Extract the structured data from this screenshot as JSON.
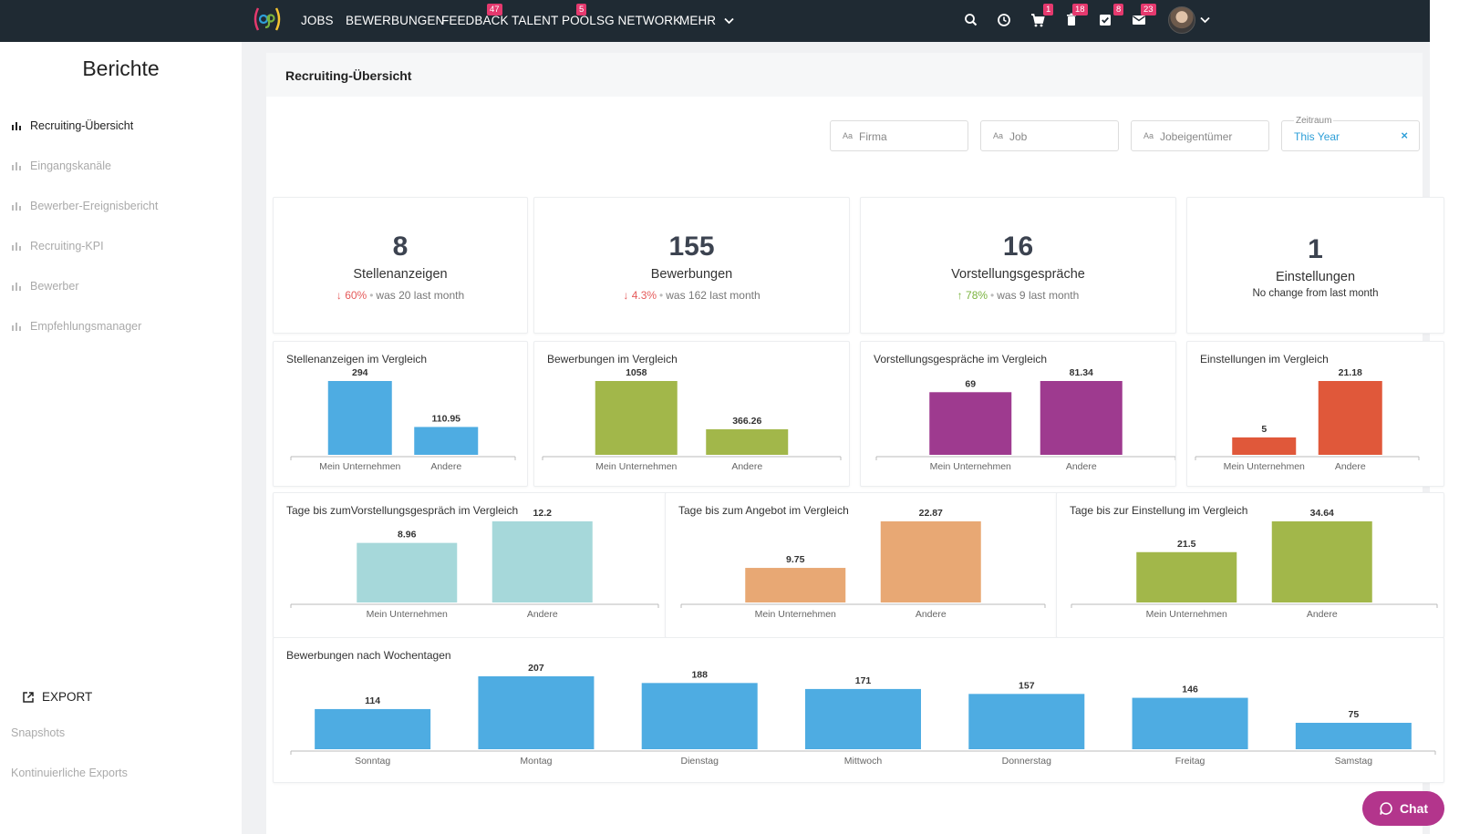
{
  "nav": {
    "items": [
      {
        "label": "JOBS"
      },
      {
        "label": "BEWERBUNGEN"
      },
      {
        "label": "FEEDBACK",
        "badge": "47"
      },
      {
        "label": "TALENT POOL",
        "badge": "5"
      },
      {
        "label": "SG NETWORK"
      },
      {
        "label": "MEHR"
      }
    ],
    "icons": [
      {
        "name": "search-icon"
      },
      {
        "name": "clock-icon"
      },
      {
        "name": "cart-icon",
        "badge": "1"
      },
      {
        "name": "trash-icon",
        "badge": "18"
      },
      {
        "name": "checkbox-icon",
        "badge": "8"
      },
      {
        "name": "mail-icon",
        "badge": "23"
      }
    ]
  },
  "sidebar": {
    "title": "Berichte",
    "items": [
      {
        "label": "Recruiting-Übersicht",
        "active": true
      },
      {
        "label": "Eingangskanäle"
      },
      {
        "label": "Bewerber-Ereignisbericht"
      },
      {
        "label": "Recruiting-KPI"
      },
      {
        "label": "Bewerber"
      },
      {
        "label": "Empfehlungsmanager"
      }
    ],
    "export_label": "EXPORT",
    "snapshots": "Snapshots",
    "continuous_exports": "Kontinuierliche Exports"
  },
  "main": {
    "title": "Recruiting-Übersicht",
    "filters": {
      "firma": "Firma",
      "job": "Job",
      "owner": "Jobeigentümer",
      "zeitraum_label": "Zeitraum",
      "zeitraum_value": "This Year",
      "aa": "Aa"
    },
    "kpis": [
      {
        "value": "8",
        "label": "Stellenanzeigen",
        "direction": "down",
        "pct": "60%",
        "was": "was 20",
        "suffix": "last month"
      },
      {
        "value": "155",
        "label": "Bewerbungen",
        "direction": "down",
        "pct": "4.3%",
        "was": "was 162",
        "suffix": "last month"
      },
      {
        "value": "16",
        "label": "Vorstellungsgespräche",
        "direction": "up",
        "pct": "78%",
        "was": "was 9",
        "suffix": "last month"
      },
      {
        "value": "1",
        "label": "Einstellungen",
        "note": "No change from last month"
      }
    ]
  },
  "chart_data": [
    {
      "type": "bar",
      "title": "Stellenanzeigen im Vergleich",
      "categories": [
        "Mein Unternehmen",
        "Andere"
      ],
      "values": [
        294,
        110.95
      ],
      "color": "#4eace2",
      "ylim": [
        0,
        294
      ]
    },
    {
      "type": "bar",
      "title": "Bewerbungen im Vergleich",
      "categories": [
        "Mein Unternehmen",
        "Andere"
      ],
      "values": [
        1058,
        366.26
      ],
      "color": "#a2b74a",
      "ylim": [
        0,
        1058
      ]
    },
    {
      "type": "bar",
      "title": "Vorstellungsgespräche im Vergleich",
      "categories": [
        "Mein Unternehmen",
        "Andere"
      ],
      "values": [
        69,
        81.34
      ],
      "color": "#9e3a8f",
      "ylim": [
        0,
        81.34
      ]
    },
    {
      "type": "bar",
      "title": "Einstellungen im Vergleich",
      "categories": [
        "Mein Unternehmen",
        "Andere"
      ],
      "values": [
        5,
        21.18
      ],
      "color": "#e0583a",
      "ylim": [
        0,
        21.18
      ]
    },
    {
      "type": "bar",
      "title": "Tage bis zumVorstellungsgespräch im Vergleich",
      "categories": [
        "Mein Unternehmen",
        "Andere"
      ],
      "values": [
        8.96,
        12.2
      ],
      "color": "#a6d8da",
      "ylim": [
        0,
        12.2
      ]
    },
    {
      "type": "bar",
      "title": "Tage bis zum Angebot im Vergleich",
      "categories": [
        "Mein Unternehmen",
        "Andere"
      ],
      "values": [
        9.75,
        22.87
      ],
      "color": "#e8a874",
      "ylim": [
        0,
        22.87
      ]
    },
    {
      "type": "bar",
      "title": "Tage bis zur Einstellung im Vergleich",
      "categories": [
        "Mein Unternehmen",
        "Andere"
      ],
      "values": [
        21.5,
        34.64
      ],
      "color": "#a2b74a",
      "ylim": [
        0,
        34.64
      ]
    },
    {
      "type": "bar",
      "title": "Bewerbungen nach Wochentagen",
      "categories": [
        "Sonntag",
        "Montag",
        "Dienstag",
        "Mittwoch",
        "Donnerstag",
        "Freitag",
        "Samstag"
      ],
      "values": [
        114,
        207,
        188,
        171,
        157,
        146,
        75
      ],
      "color": "#4eace2",
      "ylim": [
        0,
        207
      ]
    }
  ],
  "chat_label": "Chat"
}
